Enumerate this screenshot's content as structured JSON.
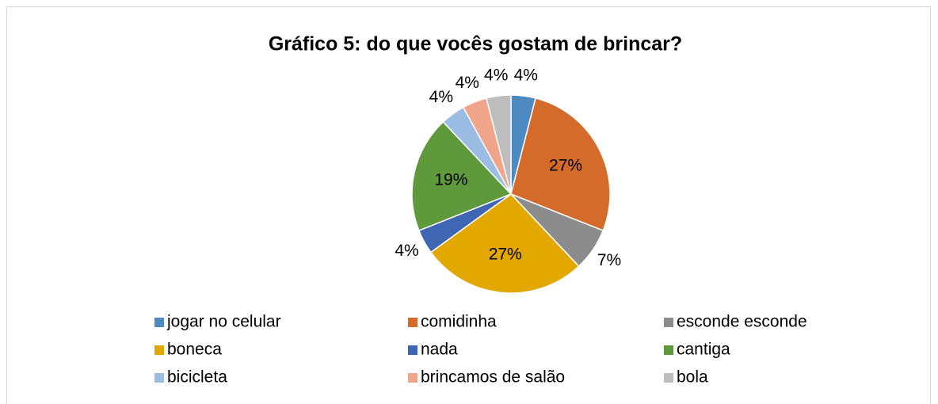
{
  "chart_data": {
    "type": "pie",
    "title": "Gráfico 5: do  que vocês gostam de brincar?",
    "categories": [
      "jogar no celular",
      "comidinha",
      "esconde esconde",
      "boneca",
      "nada",
      "cantiga",
      "bicicleta",
      "brincamos de salão",
      "bola"
    ],
    "values": [
      4,
      27,
      7,
      27,
      4,
      19,
      4,
      4,
      4
    ],
    "value_labels": [
      "4%",
      "27%",
      "7%",
      "27%",
      "4%",
      "19%",
      "4%",
      "4%",
      "4%"
    ],
    "colors": [
      "#4e8ac2",
      "#d46b2a",
      "#8c8c8c",
      "#e3a800",
      "#3f66b3",
      "#5e9a3c",
      "#9bbce3",
      "#f0a48a",
      "#bdbdbd"
    ],
    "legend": "bottom"
  }
}
